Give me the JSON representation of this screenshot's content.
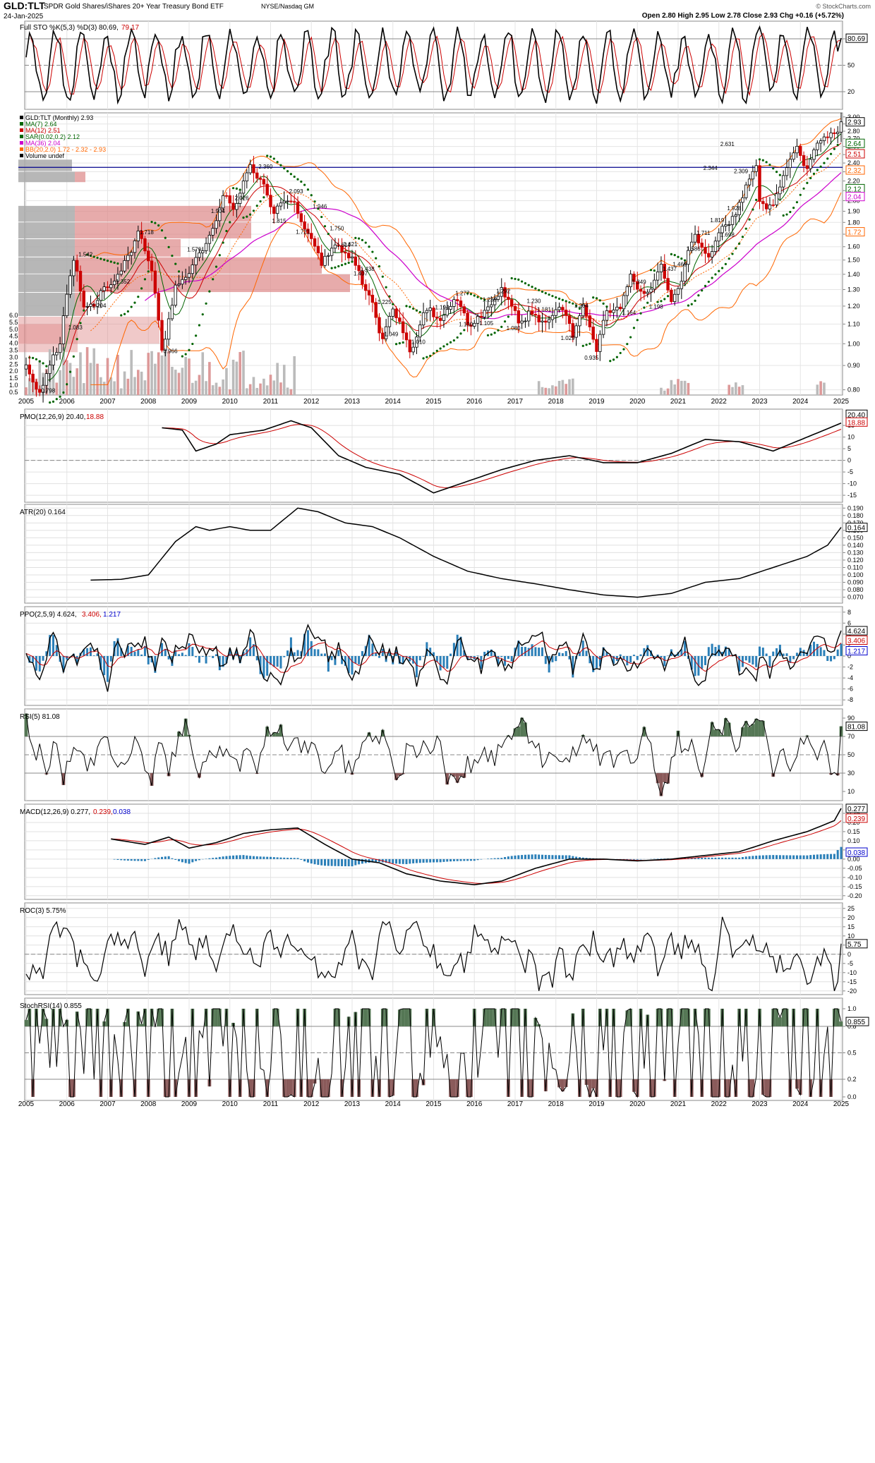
{
  "header": {
    "symbol": "GLD:TLT",
    "description": "SPDR Gold Shares/iShares 20+ Year Treasury Bond ETF",
    "exchange": "NYSE/Nasdaq GM",
    "date": "24-Jan-2025",
    "quote": "Open 2.80  High 2.95  Low 2.78  Close 2.93  Chg +0.16 (+5.72%)",
    "watermark": "© StockCharts.com"
  },
  "colors": {
    "up": "#000000",
    "down": "#cc0000",
    "ma7": "#006400",
    "ma12": "#cc0000",
    "sar": "#006400",
    "ma36": "#cc00cc",
    "bb": "#ff6600",
    "histogram": "#2a7fb8",
    "rsi_fill": "#557755",
    "rsi_low_fill": "#8a5a5a",
    "resistance": "#00008b"
  },
  "years": [
    "2005",
    "2006",
    "2007",
    "2008",
    "2009",
    "2010",
    "2011",
    "2012",
    "2013",
    "2014",
    "2015",
    "2016",
    "2017",
    "2018",
    "2019",
    "2020",
    "2021",
    "2022",
    "2023",
    "2024",
    "2025"
  ],
  "panels": {
    "sto": {
      "title": "Full STO %K(5,3) %D(3) 80.69,",
      "title2": "79.17",
      "yticks": [
        "80",
        "50",
        "20"
      ],
      "last_k": "80.69"
    },
    "price": {
      "legend": [
        {
          "text": "GLD:TLT (Monthly) 2.93",
          "color": "#000000"
        },
        {
          "text": "MA(7) 2.64",
          "color": "#006400"
        },
        {
          "text": "MA(12) 2.51",
          "color": "#cc0000"
        },
        {
          "text": "SAR(0.02,0.2) 2.12",
          "color": "#006400"
        },
        {
          "text": "MA(36) 2.04",
          "color": "#cc00cc"
        },
        {
          "text": "BB(20,2.0) 1.72 - 2.32 - 2.93",
          "color": "#ff6600"
        },
        {
          "text": "Volume undef",
          "color": "#000000"
        }
      ],
      "yticks": [
        "3.00",
        "2.90",
        "2.80",
        "2.70",
        "2.60",
        "2.50",
        "2.40",
        "2.30",
        "2.20",
        "2.10",
        "2.00",
        "1.90",
        "1.80",
        "1.70",
        "1.60",
        "1.50",
        "1.40",
        "1.30",
        "1.20",
        "1.10",
        "1.00",
        "0.90",
        "0.80"
      ],
      "vol_ticks": [
        "6.0",
        "5.5",
        "5.0",
        "4.5",
        "4.0",
        "3.5",
        "3.0",
        "2.5",
        "2.0",
        "1.5",
        "1.0",
        "0.5"
      ],
      "tags": [
        {
          "text": "2.93",
          "value": 2.93,
          "color": "#000000"
        },
        {
          "text": "2.64",
          "value": 2.64,
          "color": "#006400"
        },
        {
          "text": "2.51",
          "value": 2.51,
          "color": "#cc0000"
        },
        {
          "text": "2.32",
          "value": 2.32,
          "color": "#ff6600"
        },
        {
          "text": "2.12",
          "value": 2.12,
          "color": "#006400"
        },
        {
          "text": "2.04",
          "value": 2.04,
          "color": "#cc00cc"
        },
        {
          "text": "1.72",
          "value": 1.72,
          "color": "#ff6600"
        }
      ],
      "annotations": [
        "0.798",
        "1.083",
        "1.204",
        "1.352",
        "1.542",
        "1.718",
        "0.966",
        "1.579",
        "1.904",
        "2.026",
        "2.360",
        "1.815",
        "1.721",
        "2.093",
        "1.946",
        "1.614",
        "1.750",
        "1.407",
        "1.621",
        "1.438",
        "1.225",
        "1.049",
        "1.010",
        "1.194",
        "1.277",
        "1.100",
        "1.239",
        "1.105",
        "1.292",
        "1.080",
        "1.230",
        "1.181",
        "1.029",
        "1.204",
        "0.935",
        "1.164",
        "1.349",
        "1.198",
        "1.437",
        "1.469",
        "1.586",
        "1.711",
        "1.819",
        "1.698",
        "2.344",
        "1.928",
        "2.309",
        "2.631"
      ],
      "resistance": 2.35,
      "vol_unit": "1.0"
    },
    "pmo": {
      "title": "PMO(12,26,9) 20.40,",
      "title2": "18.88",
      "yticks": [
        "15",
        "10",
        "5",
        "0",
        "-5",
        "-10",
        "-15"
      ],
      "tag1": "20.40",
      "tag2": "18.88"
    },
    "atr": {
      "title": "ATR(20) 0.164",
      "yticks": [
        "0.190",
        "0.180",
        "0.170",
        "0.160",
        "0.150",
        "0.140",
        "0.130",
        "0.120",
        "0.110",
        "0.100",
        "0.090",
        "0.080",
        "0.070"
      ],
      "tag": "0.164"
    },
    "ppo": {
      "title": "PPO(2,5,9) 4.624,",
      "title2": "3.406,",
      "title3": "1.217",
      "yticks": [
        "8",
        "6",
        "4",
        "2",
        "0",
        "-2",
        "-4",
        "-6",
        "-8"
      ],
      "tag1": "4.624",
      "tag2": "3.406",
      "tag3": "1.217"
    },
    "rsi": {
      "title": "RSI(5) 81.08",
      "yticks": [
        "90",
        "70",
        "50",
        "30",
        "10"
      ],
      "tag": "81.08"
    },
    "macd": {
      "title": "MACD(12,26,9) 0.277,",
      "title2": "0.239,",
      "title3": "0.038",
      "yticks": [
        "0.25",
        "0.20",
        "0.15",
        "0.10",
        "0.05",
        "0.00",
        "-0.05",
        "-0.10",
        "-0.15",
        "-0.20"
      ],
      "tag1": "0.277",
      "tag2": "0.239",
      "tag3": "0.038"
    },
    "roc": {
      "title": "ROC(3) 5.75%",
      "yticks": [
        "25",
        "20",
        "15",
        "10",
        "5",
        "0",
        "-5",
        "-10",
        "-15",
        "-20"
      ],
      "tag": "5.75"
    },
    "stochrsi": {
      "title": "StochRSI(14) 0.855",
      "yticks": [
        "1.0",
        "0.8",
        "0.5",
        "0.2",
        "0.0"
      ],
      "tag": "0.855"
    }
  },
  "chart_data": {
    "type": "line",
    "title": "GLD:TLT SPDR Gold Shares/iShares 20+ Year Treasury Bond ETF",
    "x_range": [
      "2005",
      "2025"
    ],
    "y_scale": "log",
    "y_range": [
      0.8,
      3.0
    ],
    "key_points": [
      {
        "x": "2005-06",
        "y": 0.798
      },
      {
        "x": "2006-05",
        "y": 1.542
      },
      {
        "x": "2008-03",
        "y": 1.718
      },
      {
        "x": "2008-12",
        "y": 0.966
      },
      {
        "x": "2011-08",
        "y": 2.36
      },
      {
        "x": "2013-06",
        "y": 1.407
      },
      {
        "x": "2015-12",
        "y": 1.01
      },
      {
        "x": "2019-02",
        "y": 1.029
      },
      {
        "x": "2020-03",
        "y": 0.935
      },
      {
        "x": "2023-10",
        "y": 2.344
      },
      {
        "x": "2024-04",
        "y": 2.631
      },
      {
        "x": "2025-01",
        "y": 2.93
      }
    ],
    "series": [
      {
        "name": "GLD:TLT (Monthly)",
        "last": 2.93
      },
      {
        "name": "MA(7)",
        "last": 2.64
      },
      {
        "name": "MA(12)",
        "last": 2.51
      },
      {
        "name": "SAR(0.02,0.2)",
        "last": 2.12
      },
      {
        "name": "MA(36)",
        "last": 2.04
      },
      {
        "name": "BB(20,2.0)",
        "lower": 1.72,
        "middle": 2.32,
        "upper": 2.93
      }
    ]
  }
}
